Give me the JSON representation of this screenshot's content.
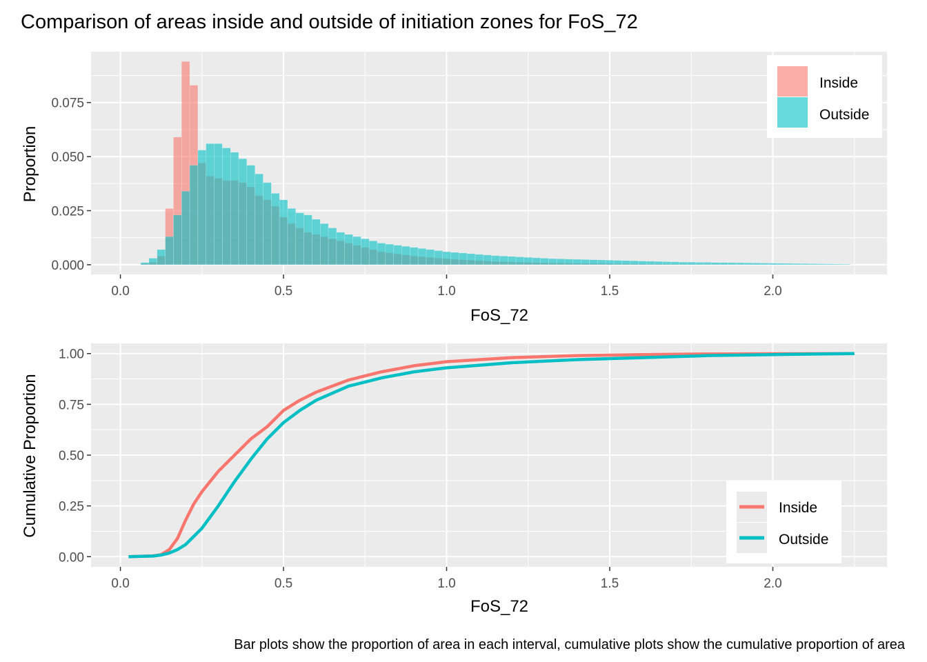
{
  "title": "Comparison of areas inside and outside of initiation zones for FoS_72",
  "caption": "Bar plots show the proportion of area in each interval, cumulative plots show the cumulative proportion of area",
  "colors": {
    "inside": "#F8766D",
    "outside": "#00BFC4",
    "panel": "#EBEBEB",
    "grid": "#FFFFFF"
  },
  "chart_data": [
    {
      "type": "bar",
      "xlabel": "FoS_72",
      "ylabel": "Proportion",
      "xlim": [
        -0.09,
        2.35
      ],
      "ylim": [
        -0.0045,
        0.0985
      ],
      "x_ticks": [
        0.0,
        0.5,
        1.0,
        1.5,
        2.0
      ],
      "x_tick_labels": [
        "0.0",
        "0.5",
        "1.0",
        "1.5",
        "2.0"
      ],
      "y_ticks": [
        0.0,
        0.025,
        0.05,
        0.075
      ],
      "y_tick_labels": [
        "0.000",
        "0.025",
        "0.050",
        "0.075"
      ],
      "bin_width": 0.025,
      "x": [
        0.075,
        0.1,
        0.125,
        0.15,
        0.175,
        0.2,
        0.225,
        0.25,
        0.275,
        0.3,
        0.325,
        0.35,
        0.375,
        0.4,
        0.425,
        0.45,
        0.475,
        0.5,
        0.525,
        0.55,
        0.575,
        0.6,
        0.625,
        0.65,
        0.675,
        0.7,
        0.725,
        0.75,
        0.775,
        0.8,
        0.825,
        0.85,
        0.875,
        0.9,
        0.925,
        0.95,
        0.975,
        1.0,
        1.025,
        1.05,
        1.075,
        1.1,
        1.125,
        1.15,
        1.175,
        1.2,
        1.225,
        1.25,
        1.275,
        1.3,
        1.325,
        1.35,
        1.375,
        1.4,
        1.425,
        1.45,
        1.475,
        1.5,
        1.525,
        1.55,
        1.575,
        1.6,
        1.625,
        1.65,
        1.675,
        1.7,
        1.725,
        1.75,
        1.775,
        1.8,
        1.825,
        1.85,
        1.875,
        1.9,
        1.925,
        1.95,
        1.975,
        2.0,
        2.025,
        2.05,
        2.075,
        2.1,
        2.125,
        2.15,
        2.175,
        2.2,
        2.225
      ],
      "legend_position": "top-right",
      "series": [
        {
          "name": "Inside",
          "values": [
            0.0005,
            0.0012,
            0.004,
            0.026,
            0.059,
            0.094,
            0.083,
            0.047,
            0.041,
            0.04,
            0.039,
            0.039,
            0.038,
            0.036,
            0.032,
            0.03,
            0.027,
            0.022,
            0.019,
            0.017,
            0.015,
            0.014,
            0.013,
            0.012,
            0.011,
            0.01,
            0.009,
            0.008,
            0.007,
            0.006,
            0.0055,
            0.005,
            0.0045,
            0.004,
            0.0037,
            0.0034,
            0.0031,
            0.0028,
            0.0025,
            0.0023,
            0.0021,
            0.0019,
            0.0017,
            0.0015,
            0.0014,
            0.0013,
            0.0012,
            0.0011,
            0.001,
            0.0009,
            0.00085,
            0.0008,
            0.00075,
            0.0007,
            0.00065,
            0.0006,
            0.00055,
            0.0005,
            0.00047,
            0.00044,
            0.00041,
            0.00038,
            0.00035,
            0.00032,
            0.0003,
            0.00028,
            0.00026,
            0.00024,
            0.00022,
            0.0002,
            0.00019,
            0.00018,
            0.00017,
            0.00016,
            0.00015,
            0.00014,
            0.00013,
            0.00012,
            0.00011,
            0.0001,
            0.0001,
            9e-05,
            8e-05,
            8e-05,
            7e-05,
            6e-05,
            6e-05
          ]
        },
        {
          "name": "Outside",
          "values": [
            0.001,
            0.003,
            0.007,
            0.013,
            0.023,
            0.034,
            0.046,
            0.053,
            0.056,
            0.056,
            0.054,
            0.052,
            0.049,
            0.046,
            0.042,
            0.038,
            0.033,
            0.03,
            0.026,
            0.024,
            0.023,
            0.021,
            0.019,
            0.017,
            0.015,
            0.014,
            0.013,
            0.012,
            0.011,
            0.01,
            0.0095,
            0.009,
            0.0085,
            0.008,
            0.0075,
            0.007,
            0.0065,
            0.006,
            0.0057,
            0.0054,
            0.0051,
            0.0048,
            0.0045,
            0.0042,
            0.004,
            0.0038,
            0.0036,
            0.0034,
            0.0032,
            0.003,
            0.0028,
            0.0027,
            0.0026,
            0.0025,
            0.0024,
            0.0023,
            0.0022,
            0.0021,
            0.002,
            0.0019,
            0.0018,
            0.0017,
            0.0016,
            0.0015,
            0.0014,
            0.0013,
            0.0012,
            0.0012,
            0.0011,
            0.0011,
            0.001,
            0.001,
            0.00095,
            0.0009,
            0.00085,
            0.0008,
            0.00075,
            0.0007,
            0.00065,
            0.0006,
            0.00055,
            0.0005,
            0.00045,
            0.0004,
            0.00035,
            0.0003,
            0.00025
          ]
        }
      ]
    },
    {
      "type": "line",
      "xlabel": "FoS_72",
      "ylabel": "Cumulative Proportion",
      "xlim": [
        -0.09,
        2.35
      ],
      "ylim": [
        -0.05,
        1.05
      ],
      "x_ticks": [
        0.0,
        0.5,
        1.0,
        1.5,
        2.0
      ],
      "x_tick_labels": [
        "0.0",
        "0.5",
        "1.0",
        "1.5",
        "2.0"
      ],
      "y_ticks": [
        0.0,
        0.25,
        0.5,
        0.75,
        1.0
      ],
      "y_tick_labels": [
        "0.00",
        "0.25",
        "0.50",
        "0.75",
        "1.00"
      ],
      "legend_position": "bottom-right",
      "series": [
        {
          "name": "Inside",
          "x": [
            0.025,
            0.1,
            0.125,
            0.15,
            0.175,
            0.2,
            0.225,
            0.25,
            0.3,
            0.35,
            0.4,
            0.45,
            0.5,
            0.55,
            0.6,
            0.7,
            0.8,
            0.9,
            1.0,
            1.2,
            1.4,
            1.6,
            1.8,
            2.0,
            2.25
          ],
          "y": [
            0.0,
            0.004,
            0.01,
            0.035,
            0.09,
            0.18,
            0.26,
            0.32,
            0.42,
            0.5,
            0.58,
            0.64,
            0.72,
            0.77,
            0.81,
            0.87,
            0.91,
            0.94,
            0.96,
            0.98,
            0.99,
            0.995,
            0.998,
            0.999,
            1.0
          ]
        },
        {
          "name": "Outside",
          "x": [
            0.025,
            0.1,
            0.125,
            0.15,
            0.175,
            0.2,
            0.25,
            0.3,
            0.35,
            0.4,
            0.45,
            0.5,
            0.55,
            0.6,
            0.7,
            0.8,
            0.9,
            1.0,
            1.2,
            1.4,
            1.6,
            1.8,
            2.0,
            2.25
          ],
          "y": [
            0.0,
            0.003,
            0.008,
            0.018,
            0.035,
            0.06,
            0.14,
            0.25,
            0.37,
            0.48,
            0.58,
            0.66,
            0.72,
            0.77,
            0.84,
            0.88,
            0.91,
            0.93,
            0.955,
            0.97,
            0.98,
            0.99,
            0.995,
            1.0
          ]
        }
      ]
    }
  ]
}
